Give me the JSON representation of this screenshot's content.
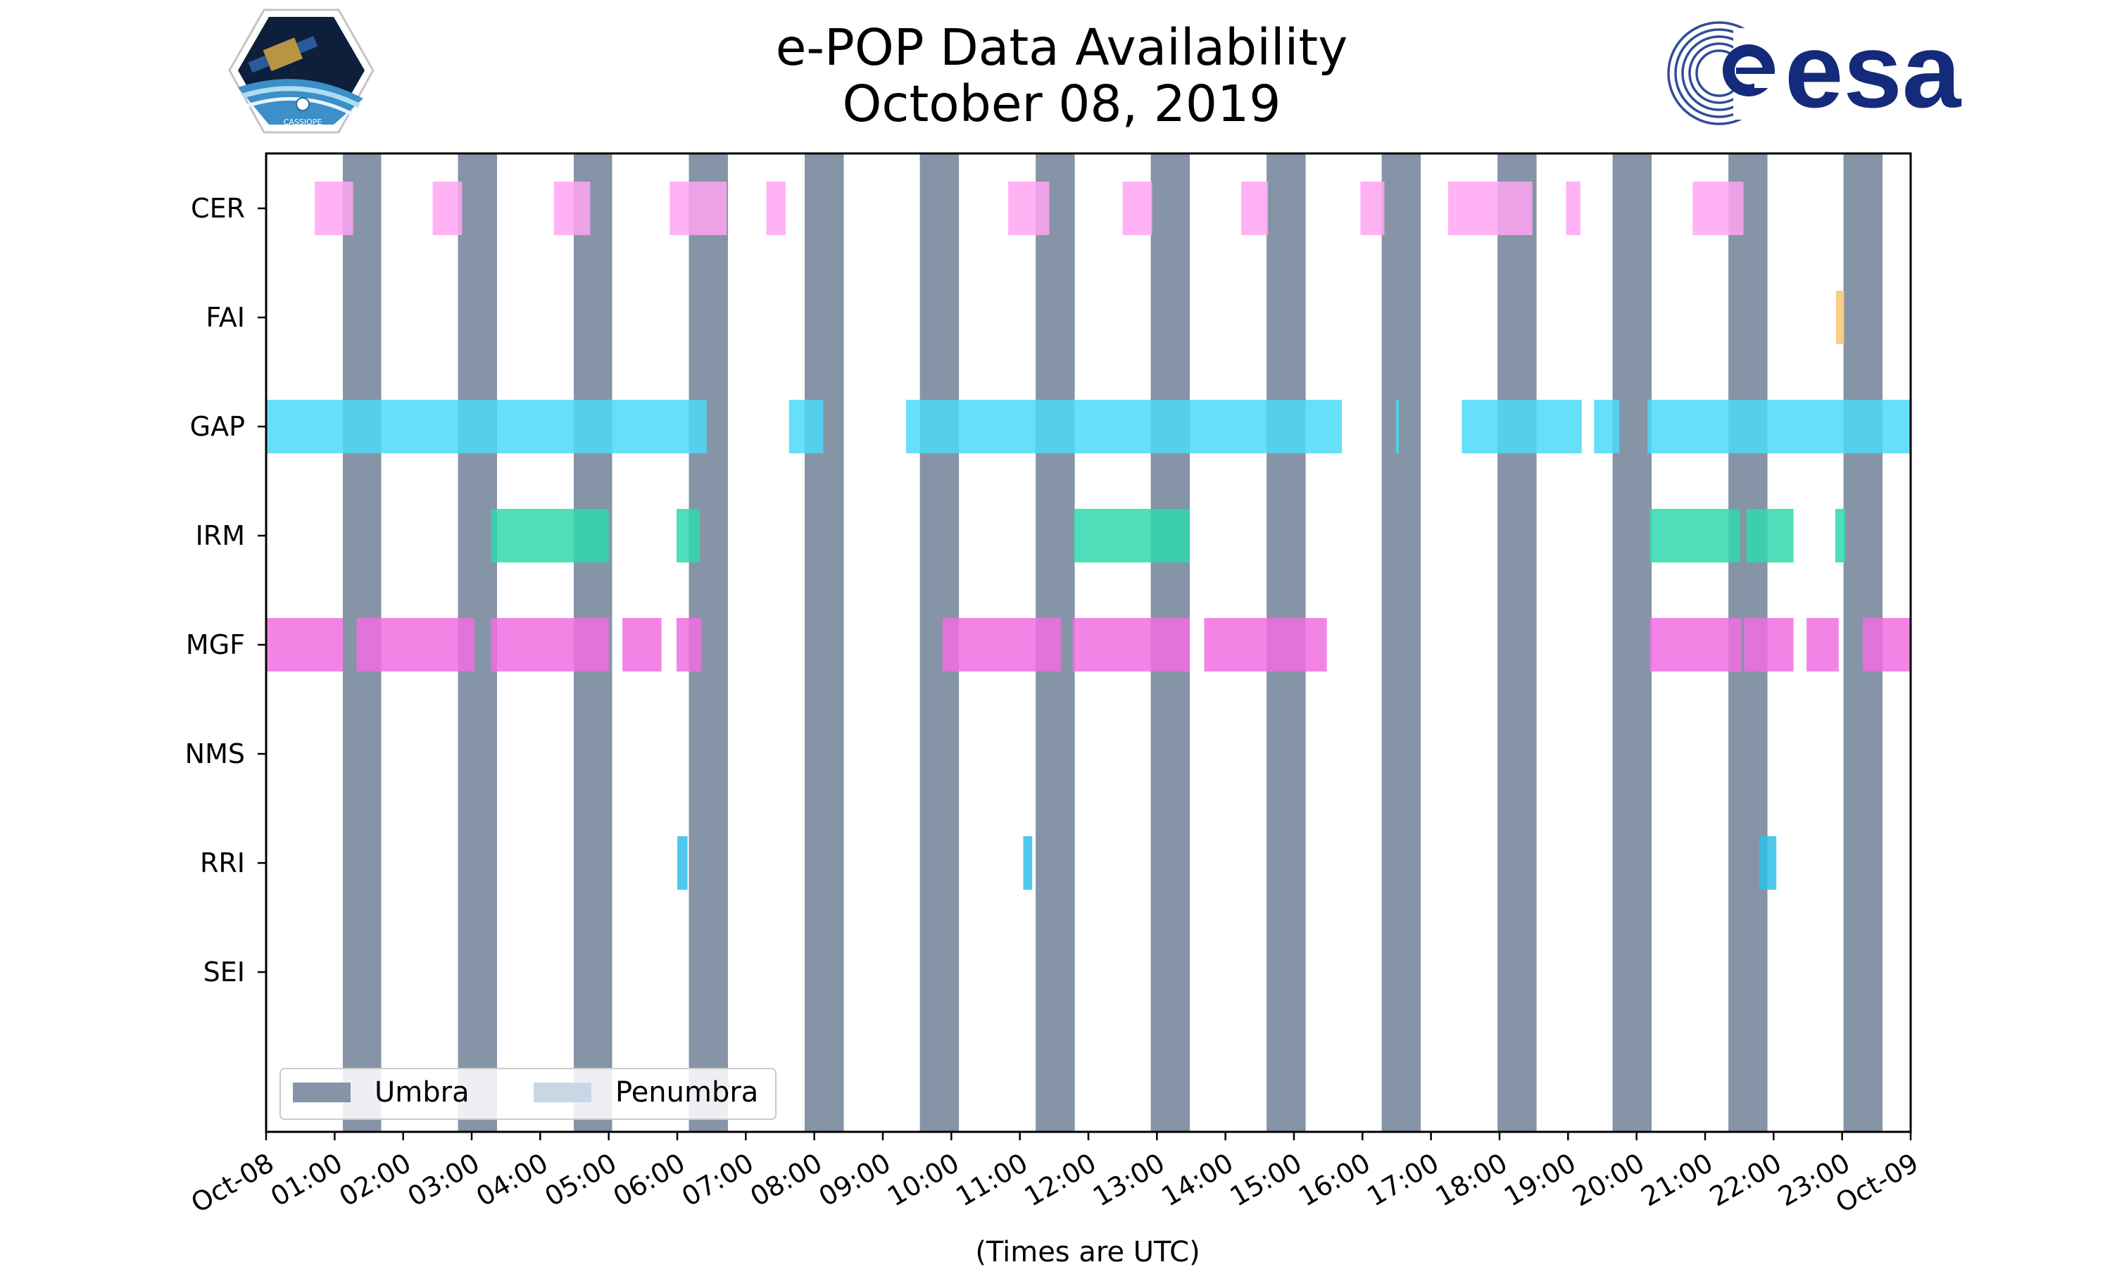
{
  "header": {
    "title_line1": "e-POP Data Availability",
    "title_line2": "October 08, 2019"
  },
  "logos": {
    "left": "CASSIOPE",
    "right": "esa"
  },
  "chart_data": {
    "type": "timeline",
    "title": "e-POP Data Availability October 08, 2019",
    "xlabel": "(Times are UTC)",
    "ylabel": "",
    "xlim": [
      0,
      24
    ],
    "x_tick_values": [
      0,
      1,
      2,
      3,
      4,
      5,
      6,
      7,
      8,
      9,
      10,
      11,
      12,
      13,
      14,
      15,
      16,
      17,
      18,
      19,
      20,
      21,
      22,
      23,
      24
    ],
    "x_tick_labels": [
      "Oct-08",
      "01:00",
      "02:00",
      "03:00",
      "04:00",
      "05:00",
      "06:00",
      "07:00",
      "08:00",
      "09:00",
      "10:00",
      "11:00",
      "12:00",
      "13:00",
      "14:00",
      "15:00",
      "16:00",
      "17:00",
      "18:00",
      "19:00",
      "20:00",
      "21:00",
      "22:00",
      "23:00",
      "Oct-09"
    ],
    "instruments": [
      "CER",
      "FAI",
      "GAP",
      "IRM",
      "MGF",
      "NMS",
      "RRI",
      "SEI"
    ],
    "colors": {
      "CER": "#ffa5f2",
      "FAI": "#f8c674",
      "GAP": "#4bd9f8",
      "IRM": "#2fd8ae",
      "MGF": "#f06ee0",
      "NMS": "#888888",
      "RRI": "#2fbfe8",
      "SEI": "#888888",
      "umbra": "#8594a6",
      "penumbra": "#c9d6e6"
    },
    "umbra_hours": [
      [
        1.12,
        1.68
      ],
      [
        2.8,
        3.37
      ],
      [
        4.49,
        5.05
      ],
      [
        6.17,
        6.74
      ],
      [
        7.86,
        8.43
      ],
      [
        9.54,
        10.11
      ],
      [
        11.23,
        11.8
      ],
      [
        12.91,
        13.48
      ],
      [
        14.6,
        15.17
      ],
      [
        16.28,
        16.85
      ],
      [
        17.97,
        18.54
      ],
      [
        19.65,
        20.22
      ],
      [
        21.34,
        21.91
      ],
      [
        23.02,
        23.59
      ]
    ],
    "segments": {
      "CER": [
        [
          0.71,
          1.27
        ],
        [
          2.43,
          2.86
        ],
        [
          4.2,
          4.73
        ],
        [
          5.89,
          6.72
        ],
        [
          7.3,
          7.58
        ],
        [
          10.83,
          11.43
        ],
        [
          12.5,
          12.93
        ],
        [
          14.23,
          14.62
        ],
        [
          15.97,
          16.32
        ],
        [
          17.25,
          18.48
        ],
        [
          18.97,
          19.18
        ],
        [
          20.82,
          21.56
        ]
      ],
      "FAI": [
        [
          22.91,
          23.03
        ]
      ],
      "GAP": [
        [
          0.0,
          6.43
        ],
        [
          7.63,
          8.13
        ],
        [
          9.34,
          11.23
        ],
        [
          11.23,
          12.55
        ],
        [
          12.55,
          15.7
        ],
        [
          16.49,
          16.53
        ],
        [
          17.45,
          19.2
        ],
        [
          19.38,
          19.75
        ],
        [
          20.16,
          24.0
        ]
      ],
      "IRM": [
        [
          3.28,
          5.0
        ],
        [
          5.99,
          6.33
        ],
        [
          11.79,
          13.48
        ],
        [
          20.19,
          21.51
        ],
        [
          21.6,
          22.29
        ],
        [
          22.9,
          23.05
        ]
      ],
      "MGF": [
        [
          0.0,
          1.12
        ],
        [
          1.32,
          3.04
        ],
        [
          3.28,
          5.0
        ],
        [
          5.2,
          5.77
        ],
        [
          5.99,
          6.35
        ],
        [
          9.87,
          11.6
        ],
        [
          11.77,
          13.48
        ],
        [
          13.69,
          15.48
        ],
        [
          20.19,
          21.53
        ],
        [
          21.57,
          22.29
        ],
        [
          22.48,
          22.95
        ],
        [
          23.3,
          24.0
        ]
      ],
      "NMS": [],
      "RRI": [
        [
          6.0,
          6.15
        ],
        [
          11.05,
          11.18
        ],
        [
          21.79,
          22.04
        ]
      ],
      "SEI": []
    },
    "legend": {
      "location": "lower-left",
      "entries": [
        "Umbra",
        "Penumbra"
      ]
    }
  }
}
